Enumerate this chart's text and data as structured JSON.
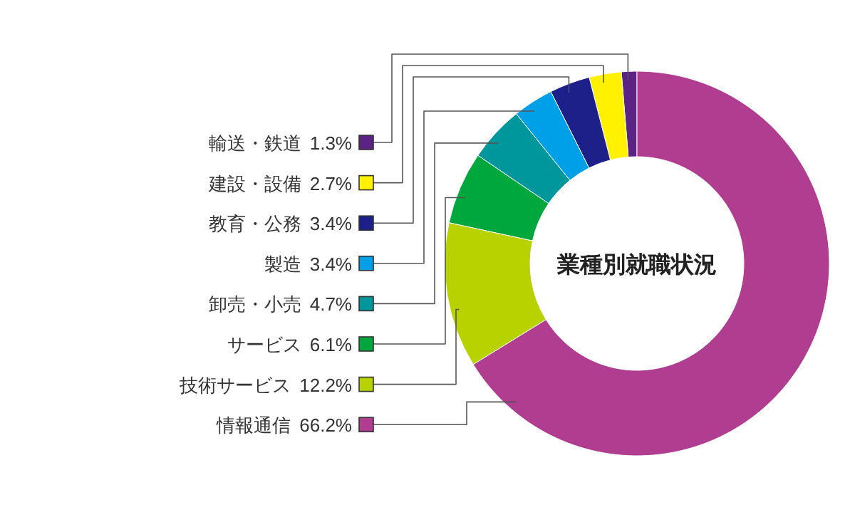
{
  "chart_data": {
    "type": "donut",
    "title": "業種別就職状況",
    "categories": [
      "輸送・鉄道",
      "建設・設備",
      "教育・公務",
      "製造",
      "卸売・小売",
      "サービス",
      "技術サービス",
      "情報通信"
    ],
    "values": [
      1.3,
      2.7,
      3.4,
      3.4,
      4.7,
      6.1,
      12.2,
      66.2
    ],
    "colors": [
      "#5b2383",
      "#fff100",
      "#1d2088",
      "#00a0e9",
      "#00979c",
      "#00a73c",
      "#b8d200",
      "#b03d90"
    ],
    "value_labels": [
      "1.3%",
      "2.7%",
      "3.4%",
      "3.4%",
      "4.7%",
      "6.1%",
      "12.2%",
      "66.2%"
    ]
  }
}
